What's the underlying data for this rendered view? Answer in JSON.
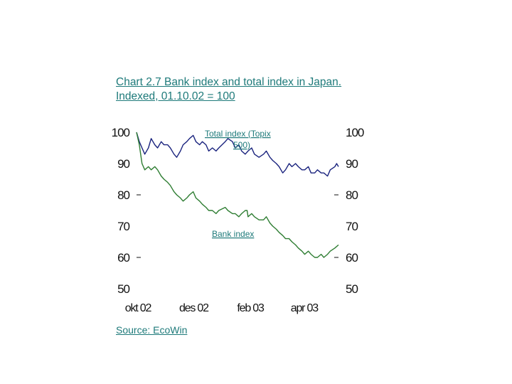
{
  "title": "Chart 2.7 Bank index and total index in Japan. Indexed, 01.10.02 = 100",
  "source": "Source: EcoWin",
  "chart_data": {
    "type": "line",
    "title": "Chart 2.7 Bank index and total index in Japan. Indexed, 01.10.02 = 100",
    "xlabel": "",
    "ylabel": "",
    "ylim": [
      50,
      100
    ],
    "y_ticks": [
      "100",
      "90",
      "80",
      "70",
      "60",
      "50"
    ],
    "y_ticks_right": [
      "100",
      "90",
      "80",
      "70",
      "60",
      "50"
    ],
    "x_ticks": [
      {
        "label": "okt 02",
        "date": "2002-10-01"
      },
      {
        "label": "des 02",
        "date": "2002-12-01"
      },
      {
        "label": "feb 03",
        "date": "2003-02-01"
      },
      {
        "label": "apr 03",
        "date": "2003-04-01"
      }
    ],
    "x_range": [
      "2002-10-01",
      "2003-05-10"
    ],
    "grid": false,
    "annotations": {
      "total": "Total index (Topix 500)",
      "bank": "Bank index"
    },
    "series": [
      {
        "name": "Total index (Topix 500)",
        "color": "#1a237e",
        "points": [
          [
            "2002-10-01",
            100
          ],
          [
            "2002-10-04",
            97
          ],
          [
            "2002-10-07",
            95
          ],
          [
            "2002-10-10",
            93
          ],
          [
            "2002-10-14",
            95
          ],
          [
            "2002-10-17",
            98
          ],
          [
            "2002-10-21",
            96
          ],
          [
            "2002-10-24",
            95
          ],
          [
            "2002-10-28",
            97
          ],
          [
            "2002-10-31",
            96
          ],
          [
            "2002-11-04",
            96
          ],
          [
            "2002-11-07",
            95
          ],
          [
            "2002-11-11",
            93
          ],
          [
            "2002-11-14",
            92
          ],
          [
            "2002-11-18",
            94
          ],
          [
            "2002-11-21",
            96
          ],
          [
            "2002-11-25",
            97
          ],
          [
            "2002-11-28",
            98
          ],
          [
            "2002-12-02",
            99
          ],
          [
            "2002-12-05",
            97
          ],
          [
            "2002-12-09",
            96
          ],
          [
            "2002-12-12",
            97
          ],
          [
            "2002-12-16",
            96
          ],
          [
            "2002-12-19",
            94
          ],
          [
            "2002-12-23",
            95
          ],
          [
            "2002-12-27",
            94
          ],
          [
            "2002-12-30",
            95
          ],
          [
            "2003-01-06",
            97
          ],
          [
            "2003-01-09",
            98
          ],
          [
            "2003-01-14",
            97
          ],
          [
            "2003-01-17",
            95
          ],
          [
            "2003-01-21",
            96
          ],
          [
            "2003-01-24",
            94
          ],
          [
            "2003-01-28",
            93
          ],
          [
            "2003-01-31",
            94
          ],
          [
            "2003-02-04",
            95
          ],
          [
            "2003-02-07",
            93
          ],
          [
            "2003-02-12",
            92
          ],
          [
            "2003-02-17",
            93
          ],
          [
            "2003-02-20",
            94
          ],
          [
            "2003-02-24",
            92
          ],
          [
            "2003-02-27",
            91
          ],
          [
            "2003-03-03",
            90
          ],
          [
            "2003-03-06",
            89
          ],
          [
            "2003-03-10",
            87
          ],
          [
            "2003-03-13",
            88
          ],
          [
            "2003-03-17",
            90
          ],
          [
            "2003-03-20",
            89
          ],
          [
            "2003-03-24",
            90
          ],
          [
            "2003-03-27",
            89
          ],
          [
            "2003-03-31",
            88
          ],
          [
            "2003-04-03",
            88
          ],
          [
            "2003-04-07",
            89
          ],
          [
            "2003-04-10",
            87
          ],
          [
            "2003-04-14",
            87
          ],
          [
            "2003-04-17",
            88
          ],
          [
            "2003-04-21",
            87
          ],
          [
            "2003-04-24",
            87
          ],
          [
            "2003-04-28",
            86
          ],
          [
            "2003-05-01",
            88
          ],
          [
            "2003-05-06",
            89
          ],
          [
            "2003-05-08",
            90
          ],
          [
            "2003-05-10",
            89
          ]
        ]
      },
      {
        "name": "Bank index",
        "color": "#2e7d32",
        "points": [
          [
            "2002-10-01",
            100
          ],
          [
            "2002-10-04",
            96
          ],
          [
            "2002-10-07",
            90
          ],
          [
            "2002-10-10",
            88
          ],
          [
            "2002-10-14",
            89
          ],
          [
            "2002-10-17",
            88
          ],
          [
            "2002-10-21",
            89
          ],
          [
            "2002-10-24",
            88
          ],
          [
            "2002-10-28",
            86
          ],
          [
            "2002-10-31",
            85
          ],
          [
            "2002-11-04",
            84
          ],
          [
            "2002-11-07",
            83
          ],
          [
            "2002-11-11",
            81
          ],
          [
            "2002-11-14",
            80
          ],
          [
            "2002-11-18",
            79
          ],
          [
            "2002-11-21",
            78
          ],
          [
            "2002-11-25",
            79
          ],
          [
            "2002-11-28",
            80
          ],
          [
            "2002-12-02",
            81
          ],
          [
            "2002-12-05",
            79
          ],
          [
            "2002-12-09",
            78
          ],
          [
            "2002-12-12",
            77
          ],
          [
            "2002-12-16",
            76
          ],
          [
            "2002-12-19",
            75
          ],
          [
            "2002-12-23",
            75
          ],
          [
            "2002-12-27",
            74
          ],
          [
            "2002-12-30",
            75
          ],
          [
            "2003-01-06",
            76
          ],
          [
            "2003-01-09",
            75
          ],
          [
            "2003-01-14",
            74
          ],
          [
            "2003-01-17",
            74
          ],
          [
            "2003-01-21",
            73
          ],
          [
            "2003-01-24",
            74
          ],
          [
            "2003-01-28",
            75
          ],
          [
            "2003-01-30",
            75
          ],
          [
            "2003-01-31",
            73
          ],
          [
            "2003-02-04",
            74
          ],
          [
            "2003-02-07",
            73
          ],
          [
            "2003-02-12",
            72
          ],
          [
            "2003-02-17",
            72
          ],
          [
            "2003-02-20",
            73
          ],
          [
            "2003-02-24",
            71
          ],
          [
            "2003-02-27",
            70
          ],
          [
            "2003-03-03",
            69
          ],
          [
            "2003-03-06",
            68
          ],
          [
            "2003-03-10",
            67
          ],
          [
            "2003-03-13",
            66
          ],
          [
            "2003-03-17",
            66
          ],
          [
            "2003-03-20",
            65
          ],
          [
            "2003-03-24",
            64
          ],
          [
            "2003-03-27",
            63
          ],
          [
            "2003-03-31",
            62
          ],
          [
            "2003-04-03",
            61
          ],
          [
            "2003-04-07",
            62
          ],
          [
            "2003-04-10",
            61
          ],
          [
            "2003-04-14",
            60
          ],
          [
            "2003-04-17",
            60
          ],
          [
            "2003-04-21",
            61
          ],
          [
            "2003-04-24",
            60
          ],
          [
            "2003-04-28",
            61
          ],
          [
            "2003-05-01",
            62
          ],
          [
            "2003-05-06",
            63
          ],
          [
            "2003-05-10",
            64
          ]
        ]
      }
    ]
  }
}
